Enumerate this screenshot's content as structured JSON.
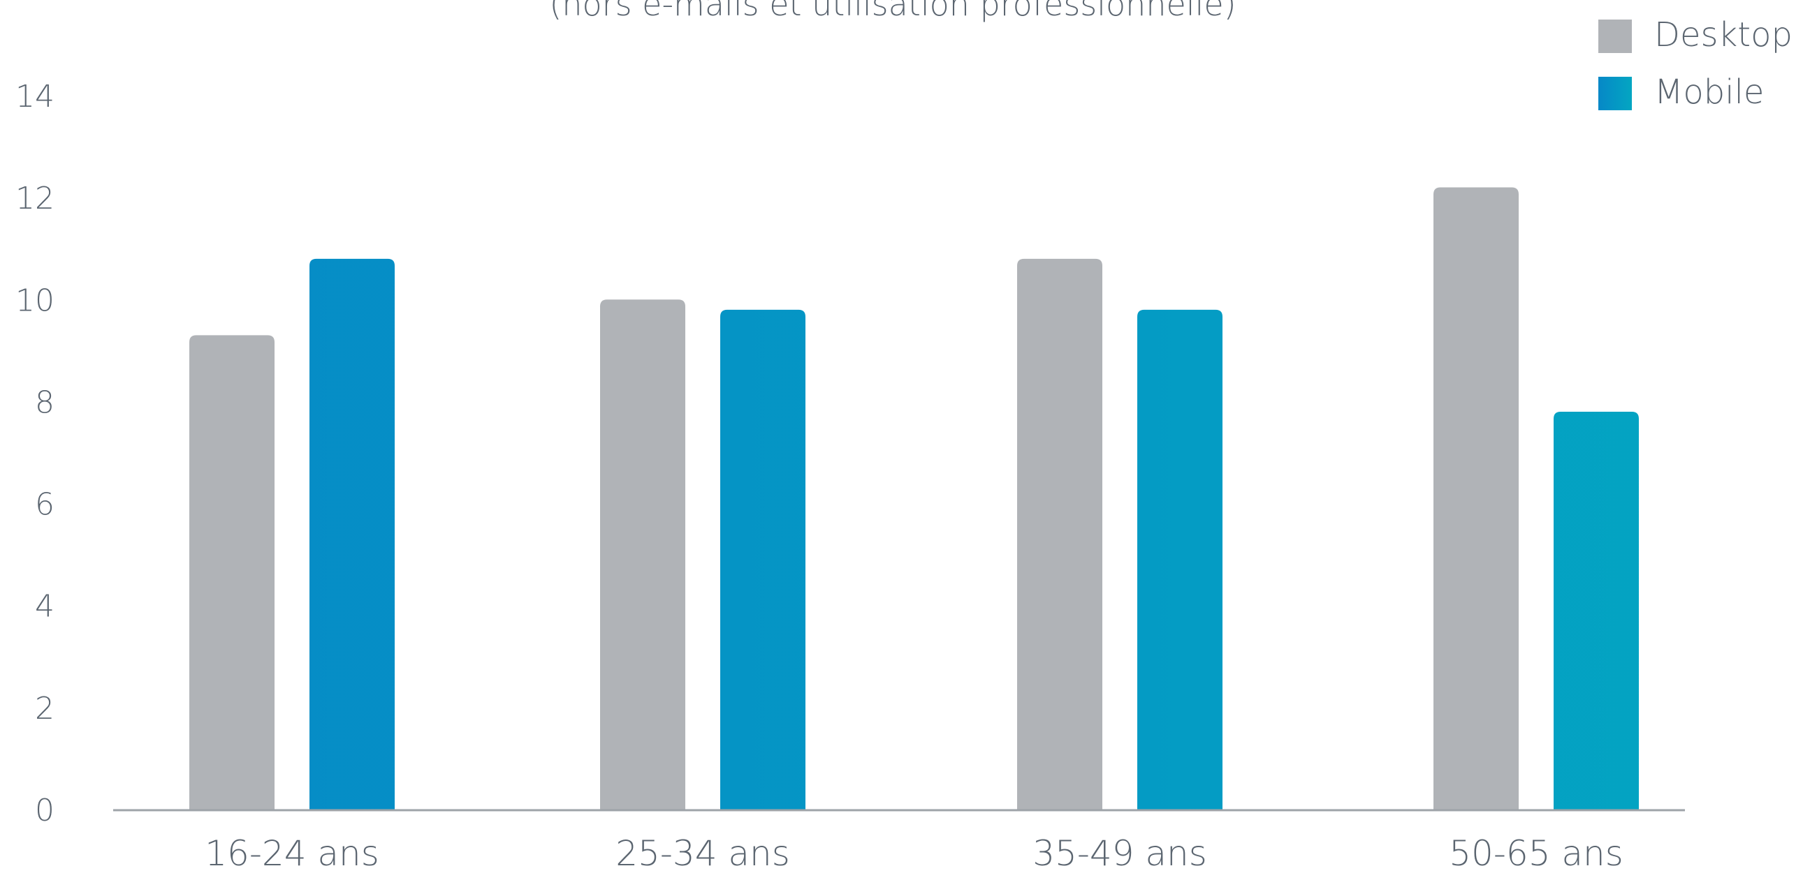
{
  "chart_data": {
    "type": "bar",
    "subtitle": "(hors e-mails et utilisation professionnelle)",
    "categories": [
      "16-24 ans",
      "25-34 ans",
      "35-49 ans",
      "50-65 ans"
    ],
    "series": [
      {
        "name": "Desktop",
        "values": [
          9.3,
          10.0,
          10.8,
          12.2
        ],
        "color": "#b0b3b7"
      },
      {
        "name": "Mobile",
        "values": [
          10.8,
          9.8,
          9.8,
          7.8
        ],
        "color": "#0688c7",
        "color_end": "#03a6c2"
      }
    ],
    "yticks": [
      0,
      2,
      4,
      6,
      8,
      10,
      12,
      14
    ],
    "ylim": [
      0,
      14
    ],
    "axis_color": "#9ea3a8",
    "legend_position": "top-right",
    "grid": false
  }
}
